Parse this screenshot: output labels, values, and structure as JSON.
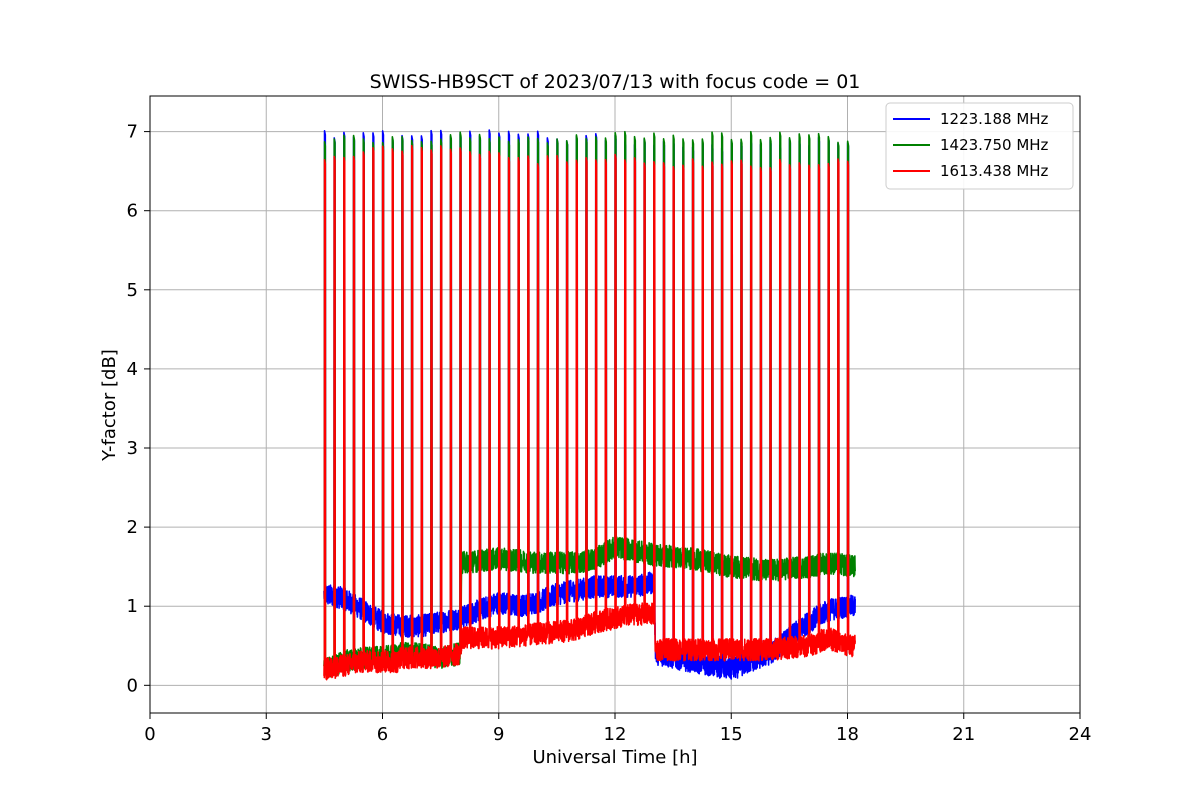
{
  "chart_data": {
    "type": "line",
    "title": "SWISS-HB9SCT of 2023/07/13 with focus code = 01",
    "xlabel": "Universal Time [h]",
    "ylabel": "Y-factor [dB]",
    "xlim": [
      0,
      24
    ],
    "ylim": [
      -0.35,
      7.45
    ],
    "xticks": [
      0,
      3,
      6,
      9,
      12,
      15,
      18,
      21,
      24
    ],
    "yticks": [
      0,
      1,
      2,
      3,
      4,
      5,
      6,
      7
    ],
    "grid": true,
    "legend_position": "top-right",
    "calibration_spikes": {
      "start": 4.5,
      "end": 18.0,
      "interval": 0.25,
      "note": "periodic calibration peaks"
    },
    "series": [
      {
        "name": "1223.188 MHz",
        "color": "#0000ff",
        "peak": [
          [
            4.5,
            6.95
          ],
          [
            6.0,
            6.95
          ],
          [
            8.0,
            7.0
          ],
          [
            10.0,
            6.95
          ],
          [
            12.0,
            6.9
          ],
          [
            14.0,
            6.85
          ],
          [
            16.0,
            6.85
          ],
          [
            18.0,
            6.9
          ]
        ],
        "baseline": [
          [
            4.5,
            1.15
          ],
          [
            5.0,
            1.1
          ],
          [
            5.5,
            0.95
          ],
          [
            6.0,
            0.8
          ],
          [
            6.5,
            0.75
          ],
          [
            7.0,
            0.75
          ],
          [
            7.5,
            0.8
          ],
          [
            8.0,
            0.85
          ],
          [
            8.5,
            0.95
          ],
          [
            9.0,
            1.05
          ],
          [
            9.5,
            1.0
          ],
          [
            10.0,
            1.05
          ],
          [
            10.5,
            1.15
          ],
          [
            11.0,
            1.2
          ],
          [
            11.5,
            1.25
          ],
          [
            12.0,
            1.25
          ],
          [
            12.5,
            1.25
          ],
          [
            13.0,
            1.3
          ],
          [
            13.05,
            0.4
          ],
          [
            13.5,
            0.35
          ],
          [
            14.0,
            0.3
          ],
          [
            14.5,
            0.25
          ],
          [
            15.0,
            0.2
          ],
          [
            15.5,
            0.3
          ],
          [
            16.0,
            0.4
          ],
          [
            16.5,
            0.6
          ],
          [
            17.0,
            0.8
          ],
          [
            17.5,
            0.95
          ],
          [
            18.0,
            1.0
          ],
          [
            18.2,
            1.0
          ]
        ]
      },
      {
        "name": "1423.750 MHz",
        "color": "#008000",
        "peak": [
          [
            4.5,
            6.9
          ],
          [
            6.0,
            6.9
          ],
          [
            8.0,
            6.95
          ],
          [
            10.0,
            6.9
          ],
          [
            12.0,
            6.95
          ],
          [
            13.0,
            6.95
          ],
          [
            14.0,
            6.95
          ],
          [
            16.0,
            6.95
          ],
          [
            18.0,
            6.9
          ]
        ],
        "baseline": [
          [
            4.5,
            0.2
          ],
          [
            5.0,
            0.3
          ],
          [
            5.5,
            0.35
          ],
          [
            6.0,
            0.35
          ],
          [
            6.5,
            0.4
          ],
          [
            7.0,
            0.4
          ],
          [
            7.5,
            0.35
          ],
          [
            8.0,
            0.4
          ],
          [
            8.05,
            1.55
          ],
          [
            9.0,
            1.6
          ],
          [
            10.0,
            1.55
          ],
          [
            11.0,
            1.55
          ],
          [
            11.5,
            1.6
          ],
          [
            12.0,
            1.75
          ],
          [
            12.5,
            1.7
          ],
          [
            13.0,
            1.65
          ],
          [
            14.0,
            1.6
          ],
          [
            15.0,
            1.5
          ],
          [
            16.0,
            1.45
          ],
          [
            17.0,
            1.5
          ],
          [
            17.5,
            1.55
          ],
          [
            18.2,
            1.5
          ]
        ]
      },
      {
        "name": "1613.438 MHz",
        "color": "#ff0000",
        "peak": [
          [
            4.5,
            6.65
          ],
          [
            6.0,
            6.8
          ],
          [
            8.0,
            6.75
          ],
          [
            10.0,
            6.65
          ],
          [
            12.0,
            6.65
          ],
          [
            14.0,
            6.6
          ],
          [
            16.0,
            6.6
          ],
          [
            18.0,
            6.6
          ]
        ],
        "baseline": [
          [
            4.5,
            0.2
          ],
          [
            5.0,
            0.25
          ],
          [
            5.5,
            0.3
          ],
          [
            6.0,
            0.3
          ],
          [
            6.4,
            0.3
          ],
          [
            6.45,
            0.35
          ],
          [
            7.0,
            0.35
          ],
          [
            7.5,
            0.35
          ],
          [
            8.0,
            0.4
          ],
          [
            8.05,
            0.6
          ],
          [
            9.0,
            0.6
          ],
          [
            10.0,
            0.65
          ],
          [
            11.0,
            0.7
          ],
          [
            11.5,
            0.8
          ],
          [
            12.0,
            0.85
          ],
          [
            12.5,
            0.9
          ],
          [
            13.0,
            0.9
          ],
          [
            13.05,
            0.45
          ],
          [
            14.0,
            0.45
          ],
          [
            15.0,
            0.45
          ],
          [
            16.0,
            0.45
          ],
          [
            17.0,
            0.5
          ],
          [
            17.5,
            0.6
          ],
          [
            18.0,
            0.5
          ],
          [
            18.2,
            0.5
          ]
        ]
      }
    ]
  }
}
